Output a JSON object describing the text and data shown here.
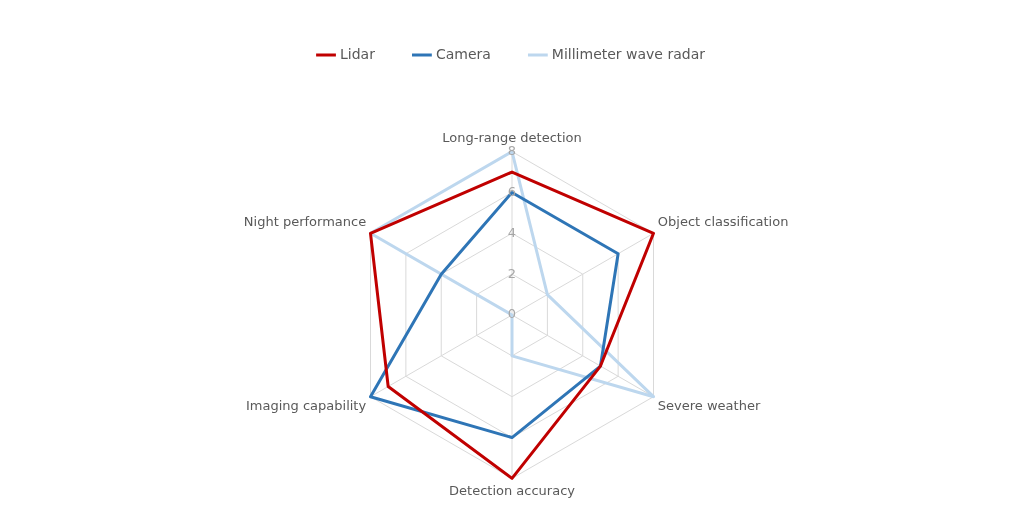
{
  "chart_data": {
    "type": "radar",
    "categories": [
      "Long-range detection",
      "Object classification",
      "Severe weather",
      "Detection accuracy",
      "Imaging capability",
      "Night performance"
    ],
    "series": [
      {
        "name": "Lidar",
        "color": "#c00000",
        "values": [
          7,
          8,
          5,
          8,
          7,
          8
        ]
      },
      {
        "name": "Camera",
        "color": "#2e75b6",
        "values": [
          6,
          6,
          5,
          6,
          8,
          4
        ]
      },
      {
        "name": "Millimeter wave radar",
        "color": "#bdd7ee",
        "values": [
          8,
          2,
          8,
          2,
          0,
          8
        ]
      }
    ],
    "ylim": [
      0,
      8
    ],
    "yticks": [
      0,
      2,
      4,
      6,
      8
    ],
    "grid": true,
    "legend": "top",
    "marker": "none"
  }
}
